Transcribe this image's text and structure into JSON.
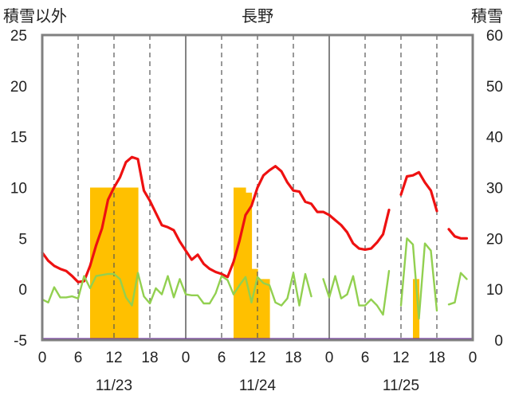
{
  "chart_data": {
    "type": "line",
    "title": "長野",
    "y_left_label": "積雪以外",
    "y_right_label": "積雪",
    "y_left_range": [
      -5,
      25
    ],
    "y_left_ticks": [
      -5,
      0,
      5,
      10,
      15,
      20,
      25
    ],
    "y_right_range": [
      0,
      60
    ],
    "y_right_ticks": [
      0,
      10,
      20,
      30,
      40,
      50,
      60
    ],
    "x_range_hours": [
      0,
      72
    ],
    "x_tick_labels": [
      "0",
      "6",
      "12",
      "18",
      "0",
      "6",
      "12",
      "18",
      "0",
      "6",
      "12",
      "18",
      "0"
    ],
    "date_labels": [
      "11/23",
      "11/24",
      "11/25"
    ],
    "grid": "vertical-only",
    "colors": {
      "series_red": "#ee1111",
      "series_green": "#92d050",
      "bars": "#ffc000",
      "baseline": "#7030a0"
    },
    "series": [
      {
        "axis": "left",
        "style": "line",
        "points": [
          [
            0,
            3.6
          ],
          [
            1,
            2.8
          ],
          [
            2,
            2.3
          ],
          [
            3,
            2.0
          ],
          [
            4,
            1.8
          ],
          [
            5,
            1.3
          ],
          [
            6,
            0.7
          ],
          [
            7,
            0.8
          ],
          [
            8,
            2.3
          ],
          [
            9,
            4.3
          ],
          [
            10,
            6.0
          ],
          [
            11,
            8.8
          ],
          [
            12,
            10.0
          ],
          [
            13,
            11.0
          ],
          [
            14,
            12.5
          ],
          [
            15,
            13.0
          ],
          [
            16,
            12.8
          ],
          [
            17,
            9.7
          ],
          [
            18,
            8.7
          ],
          [
            19,
            7.5
          ],
          [
            20,
            6.3
          ],
          [
            21,
            6.1
          ],
          [
            22,
            5.8
          ],
          [
            23,
            4.7
          ],
          [
            24,
            3.8
          ],
          [
            25,
            2.9
          ],
          [
            26,
            3.4
          ],
          [
            27,
            2.5
          ],
          [
            28,
            2.0
          ],
          [
            29,
            1.7
          ],
          [
            30,
            1.5
          ],
          [
            31,
            1.2
          ],
          [
            32,
            2.7
          ],
          [
            33,
            4.8
          ],
          [
            34,
            7.3
          ],
          [
            35,
            8.2
          ],
          [
            36,
            10.0
          ],
          [
            37,
            11.2
          ],
          [
            38,
            11.7
          ],
          [
            39,
            12.1
          ],
          [
            40,
            11.6
          ],
          [
            41,
            10.5
          ],
          [
            42,
            9.7
          ],
          [
            43,
            9.6
          ],
          [
            44,
            8.6
          ],
          [
            45,
            8.4
          ],
          [
            46,
            7.6
          ],
          [
            47,
            7.6
          ],
          [
            48,
            7.3
          ],
          [
            49,
            6.8
          ],
          [
            50,
            6.3
          ],
          [
            51,
            5.6
          ],
          [
            52,
            4.5
          ],
          [
            53,
            4.0
          ],
          [
            54,
            3.9
          ],
          [
            55,
            4.0
          ],
          [
            56,
            4.6
          ],
          [
            57,
            5.4
          ],
          [
            58,
            7.8
          ],
          null,
          [
            60,
            9.3
          ],
          [
            61,
            11.1
          ],
          [
            62,
            11.2
          ],
          [
            63,
            11.5
          ],
          [
            64,
            10.5
          ],
          [
            65,
            9.7
          ],
          [
            66,
            7.7
          ],
          null,
          [
            68,
            5.9
          ],
          [
            69,
            5.2
          ],
          [
            70,
            5.0
          ],
          [
            71,
            5.0
          ]
        ]
      },
      {
        "axis": "left",
        "style": "line",
        "points": [
          [
            0,
            -1.0
          ],
          [
            1,
            -1.3
          ],
          [
            2,
            0.2
          ],
          [
            3,
            -0.8
          ],
          [
            4,
            -0.8
          ],
          [
            5,
            -0.7
          ],
          [
            6,
            -0.9
          ],
          [
            7,
            1.3
          ],
          [
            8,
            0.1
          ],
          [
            9,
            1.3
          ],
          [
            10,
            1.4
          ],
          [
            11,
            1.5
          ],
          [
            12,
            1.5
          ],
          [
            13,
            1.0
          ],
          [
            14,
            -0.8
          ],
          [
            15,
            -1.6
          ],
          [
            16,
            1.6
          ],
          [
            17,
            -0.7
          ],
          [
            18,
            -1.4
          ],
          [
            19,
            0.1
          ],
          [
            20,
            -0.5
          ],
          [
            21,
            1.3
          ],
          [
            22,
            -0.8
          ],
          [
            23,
            1.0
          ],
          [
            24,
            -0.5
          ],
          [
            25,
            -0.6
          ],
          [
            26,
            -0.6
          ],
          [
            27,
            -1.4
          ],
          [
            28,
            -1.4
          ],
          [
            29,
            -0.4
          ],
          [
            30,
            1.3
          ],
          [
            31,
            0.9
          ],
          [
            32,
            -0.5
          ],
          [
            33,
            0.4
          ],
          [
            34,
            1.2
          ],
          [
            35,
            -1.3
          ],
          [
            36,
            1.2
          ],
          [
            37,
            0.6
          ],
          [
            38,
            0.4
          ],
          [
            39,
            -1.3
          ],
          [
            40,
            -1.6
          ],
          [
            41,
            -0.9
          ],
          [
            42,
            1.6
          ],
          [
            43,
            -1.6
          ],
          [
            44,
            1.5
          ],
          [
            45,
            -0.7
          ],
          null,
          [
            47,
            1.0
          ],
          [
            48,
            -0.8
          ],
          [
            49,
            1.3
          ],
          [
            50,
            -0.9
          ],
          [
            51,
            -0.5
          ],
          [
            52,
            1.3
          ],
          [
            53,
            -1.6
          ],
          [
            54,
            -1.6
          ],
          [
            55,
            -1.0
          ],
          [
            56,
            -1.6
          ],
          [
            57,
            -2.5
          ],
          [
            58,
            1.8
          ],
          null,
          [
            60,
            -1.6
          ],
          [
            61,
            5.0
          ],
          [
            62,
            4.4
          ],
          [
            63,
            -2.9
          ],
          [
            64,
            4.5
          ],
          [
            65,
            3.8
          ],
          [
            66,
            -2.1
          ],
          null,
          [
            68,
            -1.5
          ],
          [
            69,
            -1.3
          ],
          [
            70,
            1.6
          ],
          [
            71,
            1.0
          ]
        ]
      }
    ],
    "bars": {
      "axis": "right",
      "hour_values": [
        [
          8,
          30
        ],
        [
          9,
          30
        ],
        [
          10,
          30
        ],
        [
          11,
          30
        ],
        [
          12,
          30
        ],
        [
          13,
          30
        ],
        [
          14,
          30
        ],
        [
          15,
          30
        ],
        [
          32,
          30
        ],
        [
          33,
          30
        ],
        [
          34,
          29
        ],
        [
          35,
          14
        ],
        [
          36,
          12
        ],
        [
          37,
          12
        ],
        [
          62,
          12
        ]
      ]
    }
  }
}
